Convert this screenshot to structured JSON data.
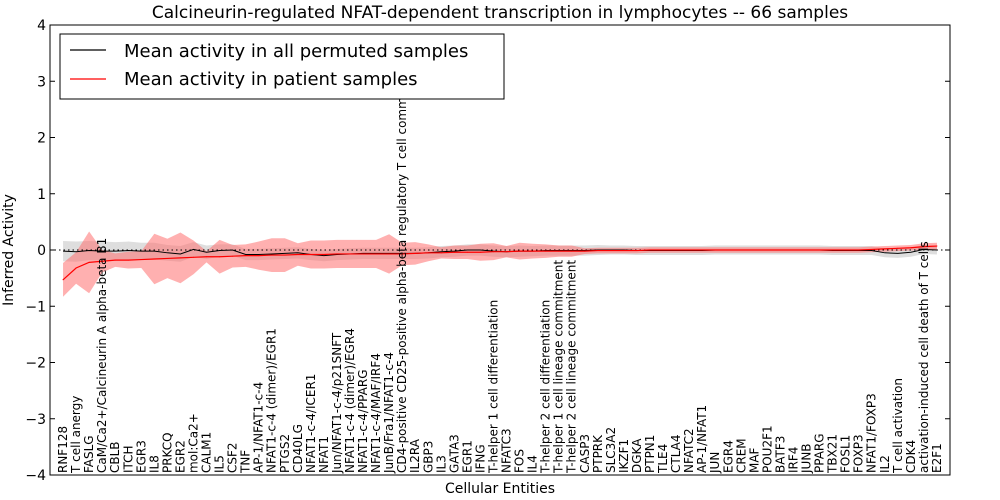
{
  "chart_data": {
    "type": "line",
    "title": "Calcineurin-regulated NFAT-dependent transcription in lymphocytes -- 66 samples",
    "xlabel": "Cellular Entities",
    "ylabel": "Inferred Activity",
    "ylim": [
      -4,
      4
    ],
    "yticks": [
      -4,
      -3,
      -2,
      -1,
      0,
      1,
      2,
      3,
      4
    ],
    "legend_position": "top-left",
    "grid": false,
    "categories": [
      "RNF128",
      "T cell anergy",
      "FASLG",
      "CaM/Ca2+/Calcineurin A alpha-beta B1",
      "CBLB",
      "ITCH",
      "EGR3",
      "IL8",
      "PRKCQ",
      "EGR2",
      "mol:Ca2+",
      "CALM1",
      "IL5",
      "CSF2",
      "TNF",
      "AP-1/NFAT1-c-4",
      "NFAT1-c-4 (dimer)/EGR1",
      "PTGS2",
      "CD40LG",
      "NFAT1-c-4/ICER1",
      "NFAT1",
      "Jun/NFAT1-c-4/p21SNFT",
      "NFAT1-c-4 (dimer)/EGR4",
      "NFAT1-c-4/PPARG",
      "NFAT1-c-4/MAF/IRF4",
      "JunB/Fra1/NFAT1-c-4",
      "CD4-positive CD25-positive alpha-beta regulatory T cell commitment",
      "IL2RA",
      "GBP3",
      "IL3",
      "GATA3",
      "EGR1",
      "IFNG",
      "T-helper 1 cell differentiation",
      "NFATC3",
      "FOS",
      "IL4",
      "T-helper 2 cell differentiation",
      "T-helper 1 cell lineage commitment",
      "T-helper 2 cell lineage commitment",
      "CASP3",
      "PTPRK",
      "SLC3A2",
      "IKZF1",
      "DGKA",
      "PTPN1",
      "TLE4",
      "CTLA4",
      "NFATC2",
      "AP-1/NFAT1",
      "JUN",
      "EGR4",
      "CREM",
      "MAF",
      "POU2F1",
      "BATF3",
      "IRF4",
      "JUNB",
      "PPARG",
      "TBX21",
      "FOSL1",
      "FOXP3",
      "NFAT1/FOXP3",
      "IL2",
      "T cell activation",
      "CDK4",
      "activation-induced cell death of T cells",
      "E2F1"
    ],
    "series": [
      {
        "name": "Mean activity in all permuted samples",
        "color": "#000000",
        "values": [
          -0.02,
          -0.03,
          -0.01,
          -0.02,
          -0.02,
          -0.01,
          -0.02,
          -0.02,
          -0.05,
          -0.07,
          0.01,
          -0.04,
          -0.01,
          0.0,
          -0.08,
          -0.08,
          -0.07,
          -0.06,
          -0.05,
          -0.08,
          -0.1,
          -0.08,
          -0.07,
          -0.06,
          -0.06,
          -0.06,
          -0.06,
          -0.06,
          -0.05,
          -0.03,
          -0.02,
          0.0,
          0.0,
          -0.02,
          -0.03,
          -0.02,
          -0.02,
          -0.01,
          -0.01,
          -0.01,
          -0.01,
          0.0,
          0.0,
          0.0,
          -0.01,
          -0.01,
          -0.01,
          -0.01,
          -0.01,
          -0.01,
          0.0,
          0.0,
          0.0,
          0.0,
          0.0,
          0.0,
          0.0,
          0.0,
          0.0,
          -0.01,
          -0.01,
          -0.01,
          -0.01,
          -0.05,
          -0.06,
          -0.04,
          0.01,
          0.0
        ],
        "band": [
          0.18,
          0.18,
          0.17,
          0.17,
          0.16,
          0.16,
          0.15,
          0.15,
          0.14,
          0.14,
          0.13,
          0.12,
          0.11,
          0.1,
          0.1,
          0.1,
          0.1,
          0.1,
          0.1,
          0.1,
          0.1,
          0.1,
          0.1,
          0.1,
          0.1,
          0.1,
          0.1,
          0.1,
          0.1,
          0.1,
          0.1,
          0.1,
          0.1,
          0.1,
          0.1,
          0.1,
          0.09,
          0.09,
          0.09,
          0.09,
          0.09,
          0.09,
          0.08,
          0.08,
          0.08,
          0.08,
          0.08,
          0.08,
          0.08,
          0.08,
          0.08,
          0.08,
          0.08,
          0.08,
          0.08,
          0.08,
          0.08,
          0.08,
          0.08,
          0.08,
          0.08,
          0.08,
          0.08,
          0.08,
          0.08,
          0.08,
          0.08,
          0.08
        ]
      },
      {
        "name": "Mean activity in patient samples",
        "color": "#ff0000",
        "values": [
          -0.53,
          -0.32,
          -0.22,
          -0.2,
          -0.18,
          -0.18,
          -0.17,
          -0.16,
          -0.15,
          -0.14,
          -0.13,
          -0.12,
          -0.12,
          -0.11,
          -0.1,
          -0.1,
          -0.09,
          -0.09,
          -0.08,
          -0.08,
          -0.08,
          -0.07,
          -0.07,
          -0.07,
          -0.07,
          -0.07,
          -0.07,
          -0.06,
          -0.05,
          -0.05,
          -0.04,
          -0.04,
          -0.04,
          -0.03,
          -0.03,
          -0.02,
          -0.02,
          -0.02,
          -0.02,
          -0.02,
          -0.02,
          -0.01,
          -0.01,
          -0.01,
          -0.01,
          0.0,
          0.0,
          0.0,
          0.0,
          0.0,
          0.0,
          0.0,
          0.0,
          0.0,
          0.0,
          0.0,
          0.0,
          0.0,
          0.0,
          0.0,
          0.0,
          0.0,
          0.01,
          0.02,
          0.03,
          0.04,
          0.06,
          0.07
        ],
        "band": [
          0.3,
          0.28,
          0.55,
          0.2,
          0.12,
          0.15,
          0.15,
          0.45,
          0.35,
          0.45,
          0.3,
          0.1,
          0.3,
          0.2,
          0.2,
          0.25,
          0.3,
          0.3,
          0.2,
          0.25,
          0.25,
          0.25,
          0.25,
          0.25,
          0.25,
          0.35,
          0.2,
          0.2,
          0.15,
          0.1,
          0.12,
          0.12,
          0.15,
          0.15,
          0.1,
          0.15,
          0.13,
          0.12,
          0.1,
          0.1,
          0.05,
          0.05,
          0.05,
          0.05,
          0.05,
          0.05,
          0.05,
          0.05,
          0.05,
          0.05,
          0.05,
          0.05,
          0.05,
          0.05,
          0.05,
          0.05,
          0.05,
          0.05,
          0.05,
          0.05,
          0.05,
          0.05,
          0.05,
          0.05,
          0.05,
          0.05,
          0.06,
          0.06
        ]
      }
    ],
    "colors": {
      "permuted_band": "#c8c8c8",
      "patient_band": "#ff7070",
      "zero_line": "#000000"
    }
  }
}
